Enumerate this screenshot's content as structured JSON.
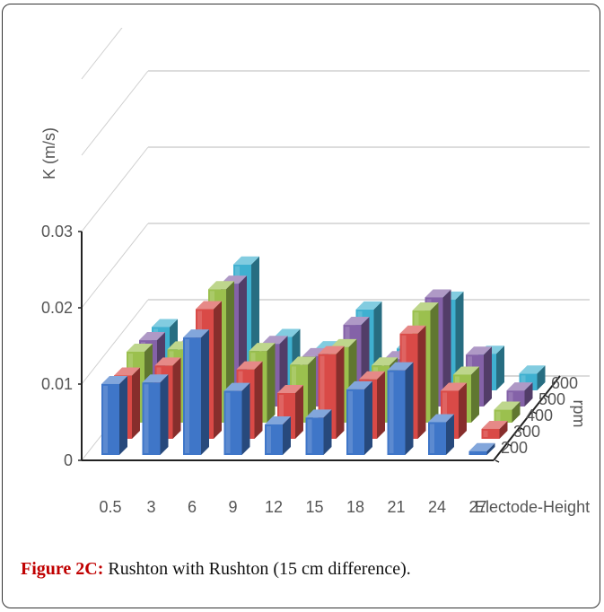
{
  "caption": {
    "label": "Figure 2C:",
    "text": " Rushton with Rushton (15 cm difference)."
  },
  "chart_data": {
    "type": "bar",
    "subtype": "3d-column",
    "title": "",
    "xlabel": "Electode-Height (cm)",
    "ylabel": "K (m/s)",
    "zlabel": "rpm",
    "categories": [
      "0.5",
      "3",
      "6",
      "9",
      "12",
      "15",
      "18",
      "21",
      "24",
      "27"
    ],
    "yticks": [
      "0",
      "0.01",
      "0.02",
      "0.03"
    ],
    "ylim": [
      0,
      0.03
    ],
    "grid": true,
    "legend": "none",
    "series": [
      {
        "name": "200",
        "color": "#3f76c8",
        "values": [
          0.0093,
          0.0095,
          0.0154,
          0.0084,
          0.004,
          0.0049,
          0.0086,
          0.0111,
          0.0043,
          0.0005
        ]
      },
      {
        "name": "300",
        "color": "#d94a47",
        "values": [
          0.0083,
          0.0096,
          0.017,
          0.0091,
          0.006,
          0.0111,
          0.0078,
          0.0138,
          0.0063,
          0.0013
        ]
      },
      {
        "name": "400",
        "color": "#9bc04e",
        "values": [
          0.0093,
          0.0096,
          0.0175,
          0.0094,
          0.0076,
          0.0099,
          0.0075,
          0.0147,
          0.0063,
          0.0017
        ]
      },
      {
        "name": "500",
        "color": "#8462a8",
        "values": [
          0.0087,
          0.0083,
          0.0161,
          0.0082,
          0.0066,
          0.0107,
          0.0062,
          0.0143,
          0.0068,
          0.0021
        ]
      },
      {
        "name": "600",
        "color": "#3fb0d0",
        "values": [
          0.0083,
          0.0075,
          0.0165,
          0.007,
          0.0054,
          0.0106,
          0.0055,
          0.0119,
          0.0048,
          0.0022
        ]
      }
    ]
  }
}
